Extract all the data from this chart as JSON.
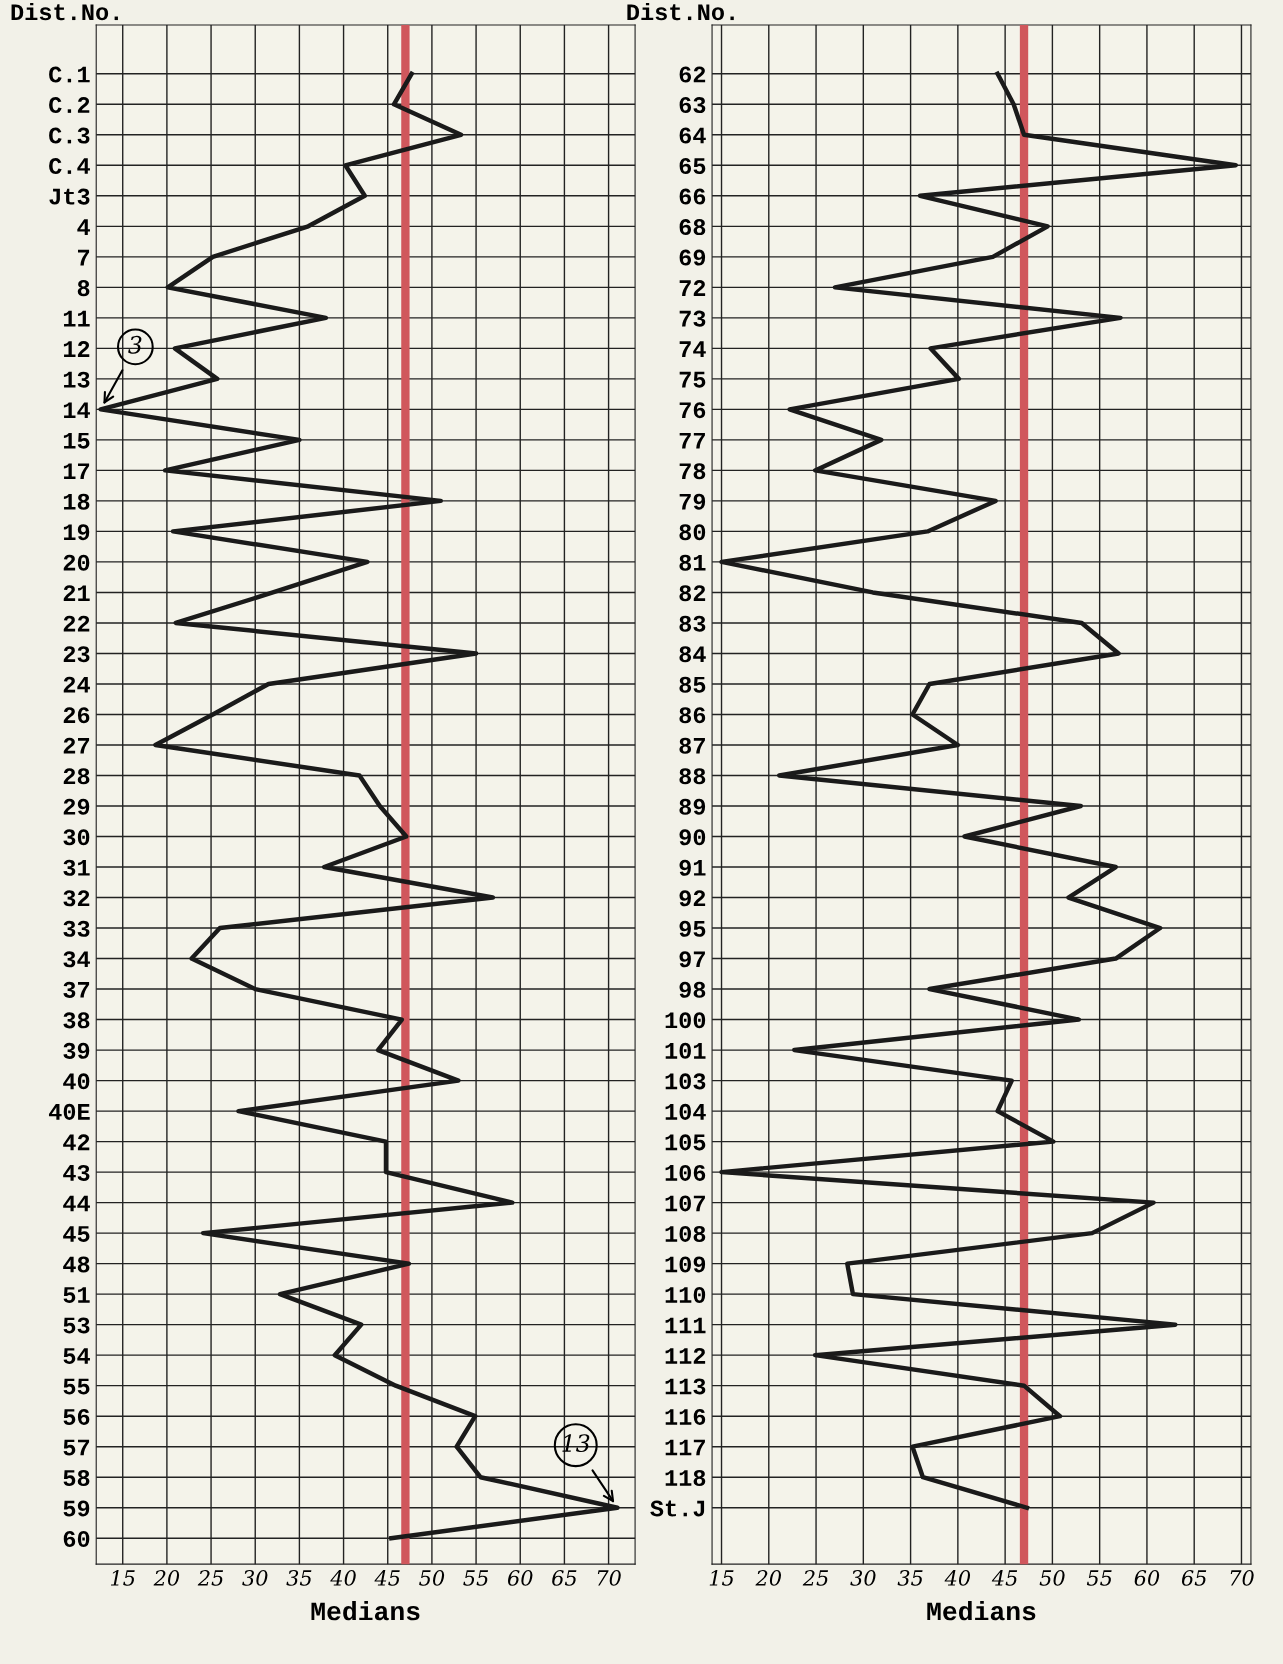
{
  "chart_data": [
    {
      "type": "line",
      "orientation": "horizontal",
      "ylabel": "Dist.No.",
      "xlabel": "Medians",
      "marker": "none",
      "line_style": "solid",
      "grid": true,
      "categories": [
        "C.1",
        "C.2",
        "C.3",
        "C.4",
        "Jt3",
        "4",
        "7",
        "8",
        "11",
        "12",
        "13",
        "14",
        "15",
        "17",
        "18",
        "19",
        "20",
        "21",
        "22",
        "23",
        "24",
        "26",
        "27",
        "28",
        "29",
        "30",
        "31",
        "32",
        "33",
        "34",
        "37",
        "38",
        "39",
        "40",
        "40E",
        "42",
        "43",
        "44",
        "45",
        "48",
        "51",
        "53",
        "54",
        "55",
        "56",
        "57",
        "58",
        "59",
        "60"
      ],
      "series": [
        {
          "color": "#1a1a1a",
          "values": [
            47.7,
            45.7,
            53.3,
            40.2,
            42.4,
            36,
            25.2,
            20.1,
            38,
            20.9,
            25.7,
            12.5,
            35,
            19.8,
            51,
            20.7,
            42.7,
            32,
            21,
            55,
            31.5,
            25.2,
            18.7,
            41.8,
            44.1,
            47.1,
            37.8,
            56.9,
            26,
            22.8,
            30,
            46.6,
            43.9,
            53,
            28.1,
            44.8,
            44.8,
            59.1,
            24.1,
            47.4,
            32.8,
            42,
            39,
            45.9,
            54.9,
            52.8,
            55.5,
            71,
            45.4
          ]
        }
      ],
      "xlim": [
        12,
        73
      ],
      "xticks": [
        15,
        20,
        25,
        30,
        35,
        40,
        45,
        50,
        55,
        60,
        65,
        70
      ],
      "ref_lines": [
        {
          "axis": "x",
          "value": 47,
          "color": "#d0575c"
        }
      ],
      "annotations": [
        {
          "text": "3",
          "x": 12.5,
          "y": "14"
        },
        {
          "text": "13",
          "x": 71,
          "y": "59"
        }
      ]
    },
    {
      "type": "line",
      "orientation": "horizontal",
      "ylabel": "Dist.No.",
      "xlabel": "Medians",
      "marker": "none",
      "line_style": "solid",
      "grid": true,
      "categories": [
        "62",
        "63",
        "64",
        "65",
        "66",
        "68",
        "69",
        "72",
        "73",
        "74",
        "75",
        "76",
        "77",
        "78",
        "79",
        "80",
        "81",
        "82",
        "83",
        "84",
        "85",
        "86",
        "87",
        "88",
        "89",
        "90",
        "91",
        "92",
        "95",
        "97",
        "98",
        "100",
        "101",
        "103",
        "104",
        "105",
        "106",
        "107",
        "108",
        "109",
        "110",
        "111",
        "112",
        "113",
        "116",
        "117",
        "118",
        "St.J"
      ],
      "series": [
        {
          "color": "#1a1a1a",
          "values": [
            44.2,
            45.9,
            47,
            69.4,
            36,
            49.5,
            43.7,
            27,
            57.2,
            37.1,
            40.1,
            22.2,
            31.9,
            24.9,
            44,
            36.8,
            15,
            31,
            53.1,
            57,
            37,
            35.2,
            40,
            21.1,
            53,
            40.7,
            56.7,
            51.7,
            61.4,
            56.7,
            37,
            52.8,
            22.7,
            45.7,
            44.2,
            50.1,
            15,
            60.7,
            54.2,
            28.3,
            28.9,
            63,
            24.9,
            47,
            50.8,
            35.2,
            36.3,
            47.3
          ]
        }
      ],
      "xlim": [
        14,
        71
      ],
      "xticks": [
        15,
        20,
        25,
        30,
        35,
        40,
        45,
        50,
        55,
        60,
        65,
        70
      ],
      "ref_lines": [
        {
          "axis": "x",
          "value": 47,
          "color": "#d0575c"
        }
      ]
    }
  ]
}
